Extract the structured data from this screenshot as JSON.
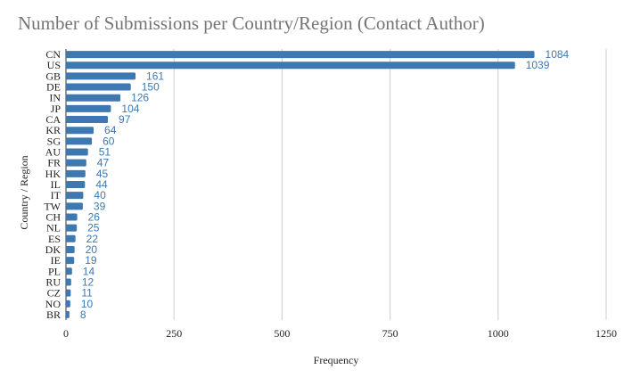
{
  "chart_data": {
    "type": "bar",
    "orientation": "horizontal",
    "title": "Number of Submissions per Country/Region (Contact Author)",
    "xlabel": "Frequency",
    "ylabel": "Country / Region",
    "xlim": [
      0,
      1250
    ],
    "xticks": [
      0,
      250,
      500,
      750,
      1000,
      1250
    ],
    "grid": true,
    "legend": "none",
    "bar_color": "#3d78b0",
    "label_color": "#3d78b0",
    "categories": [
      "CN",
      "US",
      "GB",
      "DE",
      "IN",
      "JP",
      "CA",
      "KR",
      "SG",
      "AU",
      "FR",
      "HK",
      "IL",
      "IT",
      "TW",
      "CH",
      "NL",
      "ES",
      "DK",
      "IE",
      "PL",
      "RU",
      "CZ",
      "NO",
      "BR"
    ],
    "values": [
      1084,
      1039,
      161,
      150,
      126,
      104,
      97,
      64,
      60,
      51,
      47,
      45,
      44,
      40,
      39,
      26,
      25,
      22,
      20,
      19,
      14,
      12,
      11,
      10,
      8
    ]
  }
}
